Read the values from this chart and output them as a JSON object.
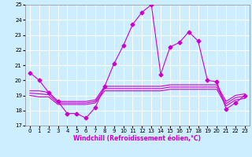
{
  "xlabel": "Windchill (Refroidissement éolien,°C)",
  "background_color": "#cceeff",
  "line_color": "#cc00cc",
  "xlim": [
    -0.5,
    23.5
  ],
  "ylim": [
    17,
    25
  ],
  "yticks": [
    17,
    18,
    19,
    20,
    21,
    22,
    23,
    24,
    25
  ],
  "xticks": [
    0,
    1,
    2,
    3,
    4,
    5,
    6,
    7,
    8,
    9,
    10,
    11,
    12,
    13,
    14,
    15,
    16,
    17,
    18,
    19,
    20,
    21,
    22,
    23
  ],
  "series1_x": [
    0,
    1,
    2,
    3,
    4,
    5,
    6,
    7,
    8,
    9,
    10,
    11,
    12,
    13,
    14,
    15,
    16,
    17,
    18,
    19,
    20,
    21,
    22,
    23
  ],
  "series1_y": [
    20.5,
    20.0,
    19.2,
    18.6,
    17.8,
    17.8,
    17.5,
    18.2,
    19.6,
    21.1,
    22.3,
    23.7,
    24.5,
    25.0,
    20.4,
    22.2,
    22.5,
    23.2,
    22.6,
    20.0,
    19.9,
    18.1,
    18.5,
    19.0
  ],
  "series2_x": [
    0,
    1,
    2,
    3,
    4,
    5,
    6,
    7,
    8,
    9,
    10,
    11,
    12,
    13,
    14,
    15,
    16,
    17,
    18,
    19,
    20,
    21,
    22,
    23
  ],
  "series2_y": [
    19.3,
    19.3,
    19.2,
    18.6,
    18.6,
    18.6,
    18.6,
    18.7,
    19.6,
    19.6,
    19.6,
    19.6,
    19.6,
    19.6,
    19.6,
    19.7,
    19.7,
    19.7,
    19.7,
    19.7,
    19.7,
    18.6,
    19.0,
    19.1
  ],
  "series3_x": [
    0,
    1,
    2,
    3,
    4,
    5,
    6,
    7,
    8,
    9,
    10,
    11,
    12,
    13,
    14,
    15,
    16,
    17,
    18,
    19,
    20,
    21,
    22,
    23
  ],
  "series3_y": [
    19.0,
    18.9,
    18.9,
    18.4,
    18.4,
    18.4,
    18.4,
    18.5,
    19.3,
    19.3,
    19.3,
    19.3,
    19.3,
    19.3,
    19.3,
    19.4,
    19.4,
    19.4,
    19.4,
    19.4,
    19.4,
    18.3,
    18.7,
    18.8
  ],
  "series4_x": [
    0,
    1,
    2,
    3,
    4,
    5,
    6,
    7,
    8,
    9,
    10,
    11,
    12,
    13,
    14,
    15,
    16,
    17,
    18,
    19,
    20,
    21,
    22,
    23
  ],
  "series4_y": [
    19.15,
    19.1,
    19.05,
    18.5,
    18.5,
    18.5,
    18.5,
    18.6,
    19.45,
    19.45,
    19.45,
    19.45,
    19.45,
    19.45,
    19.45,
    19.55,
    19.55,
    19.55,
    19.55,
    19.55,
    19.55,
    18.45,
    18.85,
    18.95
  ],
  "xlabel_fontsize": 5.5,
  "tick_fontsize": 5,
  "grid_color": "#ffffff",
  "grid_lw": 0.8,
  "line_lw": 0.8,
  "marker": "D",
  "markersize": 2.5
}
